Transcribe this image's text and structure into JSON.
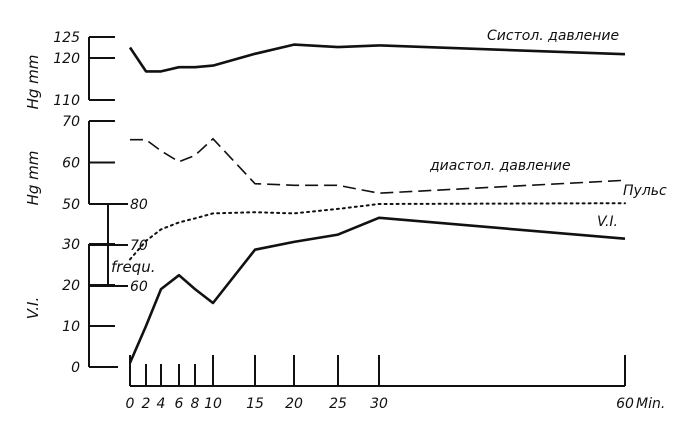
{
  "chart_data": {
    "type": "line",
    "x_axis": {
      "ticks": [
        0,
        2,
        4,
        6,
        8,
        10,
        15,
        20,
        25,
        30,
        60
      ],
      "tick_labels": [
        "0",
        "2",
        "4",
        "6",
        "8",
        "10",
        "15",
        "20",
        "25",
        "30",
        "60"
      ],
      "unit": "Min.",
      "range": [
        0,
        60
      ]
    },
    "axes": {
      "systolic": {
        "label": "Hg mm",
        "ticks": [
          110,
          120,
          125
        ],
        "range": [
          110,
          125
        ]
      },
      "diastolic": {
        "label": "Hg mm",
        "ticks": [
          50,
          60,
          70
        ],
        "range": [
          50,
          70
        ]
      },
      "pulse": {
        "label": "frequ.",
        "ticks": [
          60,
          70,
          80
        ],
        "tick_labels": [
          "60",
          "70",
          "80"
        ],
        "range": [
          60,
          80
        ]
      },
      "vi": {
        "label": "V.I.",
        "ticks": [
          0,
          10,
          20,
          30
        ],
        "range": [
          0,
          30
        ]
      }
    },
    "series": [
      {
        "name": "Систол. давление",
        "style": "solid",
        "axis": "systolic",
        "x": [
          0,
          2,
          4,
          6,
          8,
          10,
          15,
          20,
          25,
          30,
          60
        ],
        "y": [
          122.5,
          116.8,
          116.8,
          117.8,
          117.8,
          118.2,
          121.0,
          123.2,
          122.6,
          123.0,
          120.9
        ]
      },
      {
        "name": "диастол. давление",
        "style": "dashed",
        "axis": "diastolic",
        "x": [
          0,
          2,
          4,
          6,
          8,
          10,
          15,
          20,
          25,
          30,
          60
        ],
        "y": [
          65.5,
          65.5,
          62.8,
          60.2,
          61.7,
          65.7,
          54.9,
          54.5,
          54.5,
          52.6,
          55.7
        ]
      },
      {
        "name": "Пульс",
        "style": "dotted",
        "axis": "pulse",
        "x": [
          0,
          2,
          4,
          6,
          8,
          10,
          15,
          20,
          25,
          30,
          60
        ],
        "y": [
          66.5,
          71.0,
          73.8,
          75.5,
          76.5,
          77.7,
          78.0,
          77.7,
          78.8,
          80.0,
          80.2
        ]
      },
      {
        "name": "V.I.",
        "style": "solid",
        "axis": "vi",
        "x": [
          0,
          2,
          4,
          6,
          8,
          10,
          15,
          20,
          25,
          30,
          60
        ],
        "y": [
          1,
          10,
          19,
          22.4,
          19,
          15.6,
          28.6,
          30.5,
          32.3,
          36.4,
          31.3
        ]
      }
    ],
    "grid": false
  }
}
